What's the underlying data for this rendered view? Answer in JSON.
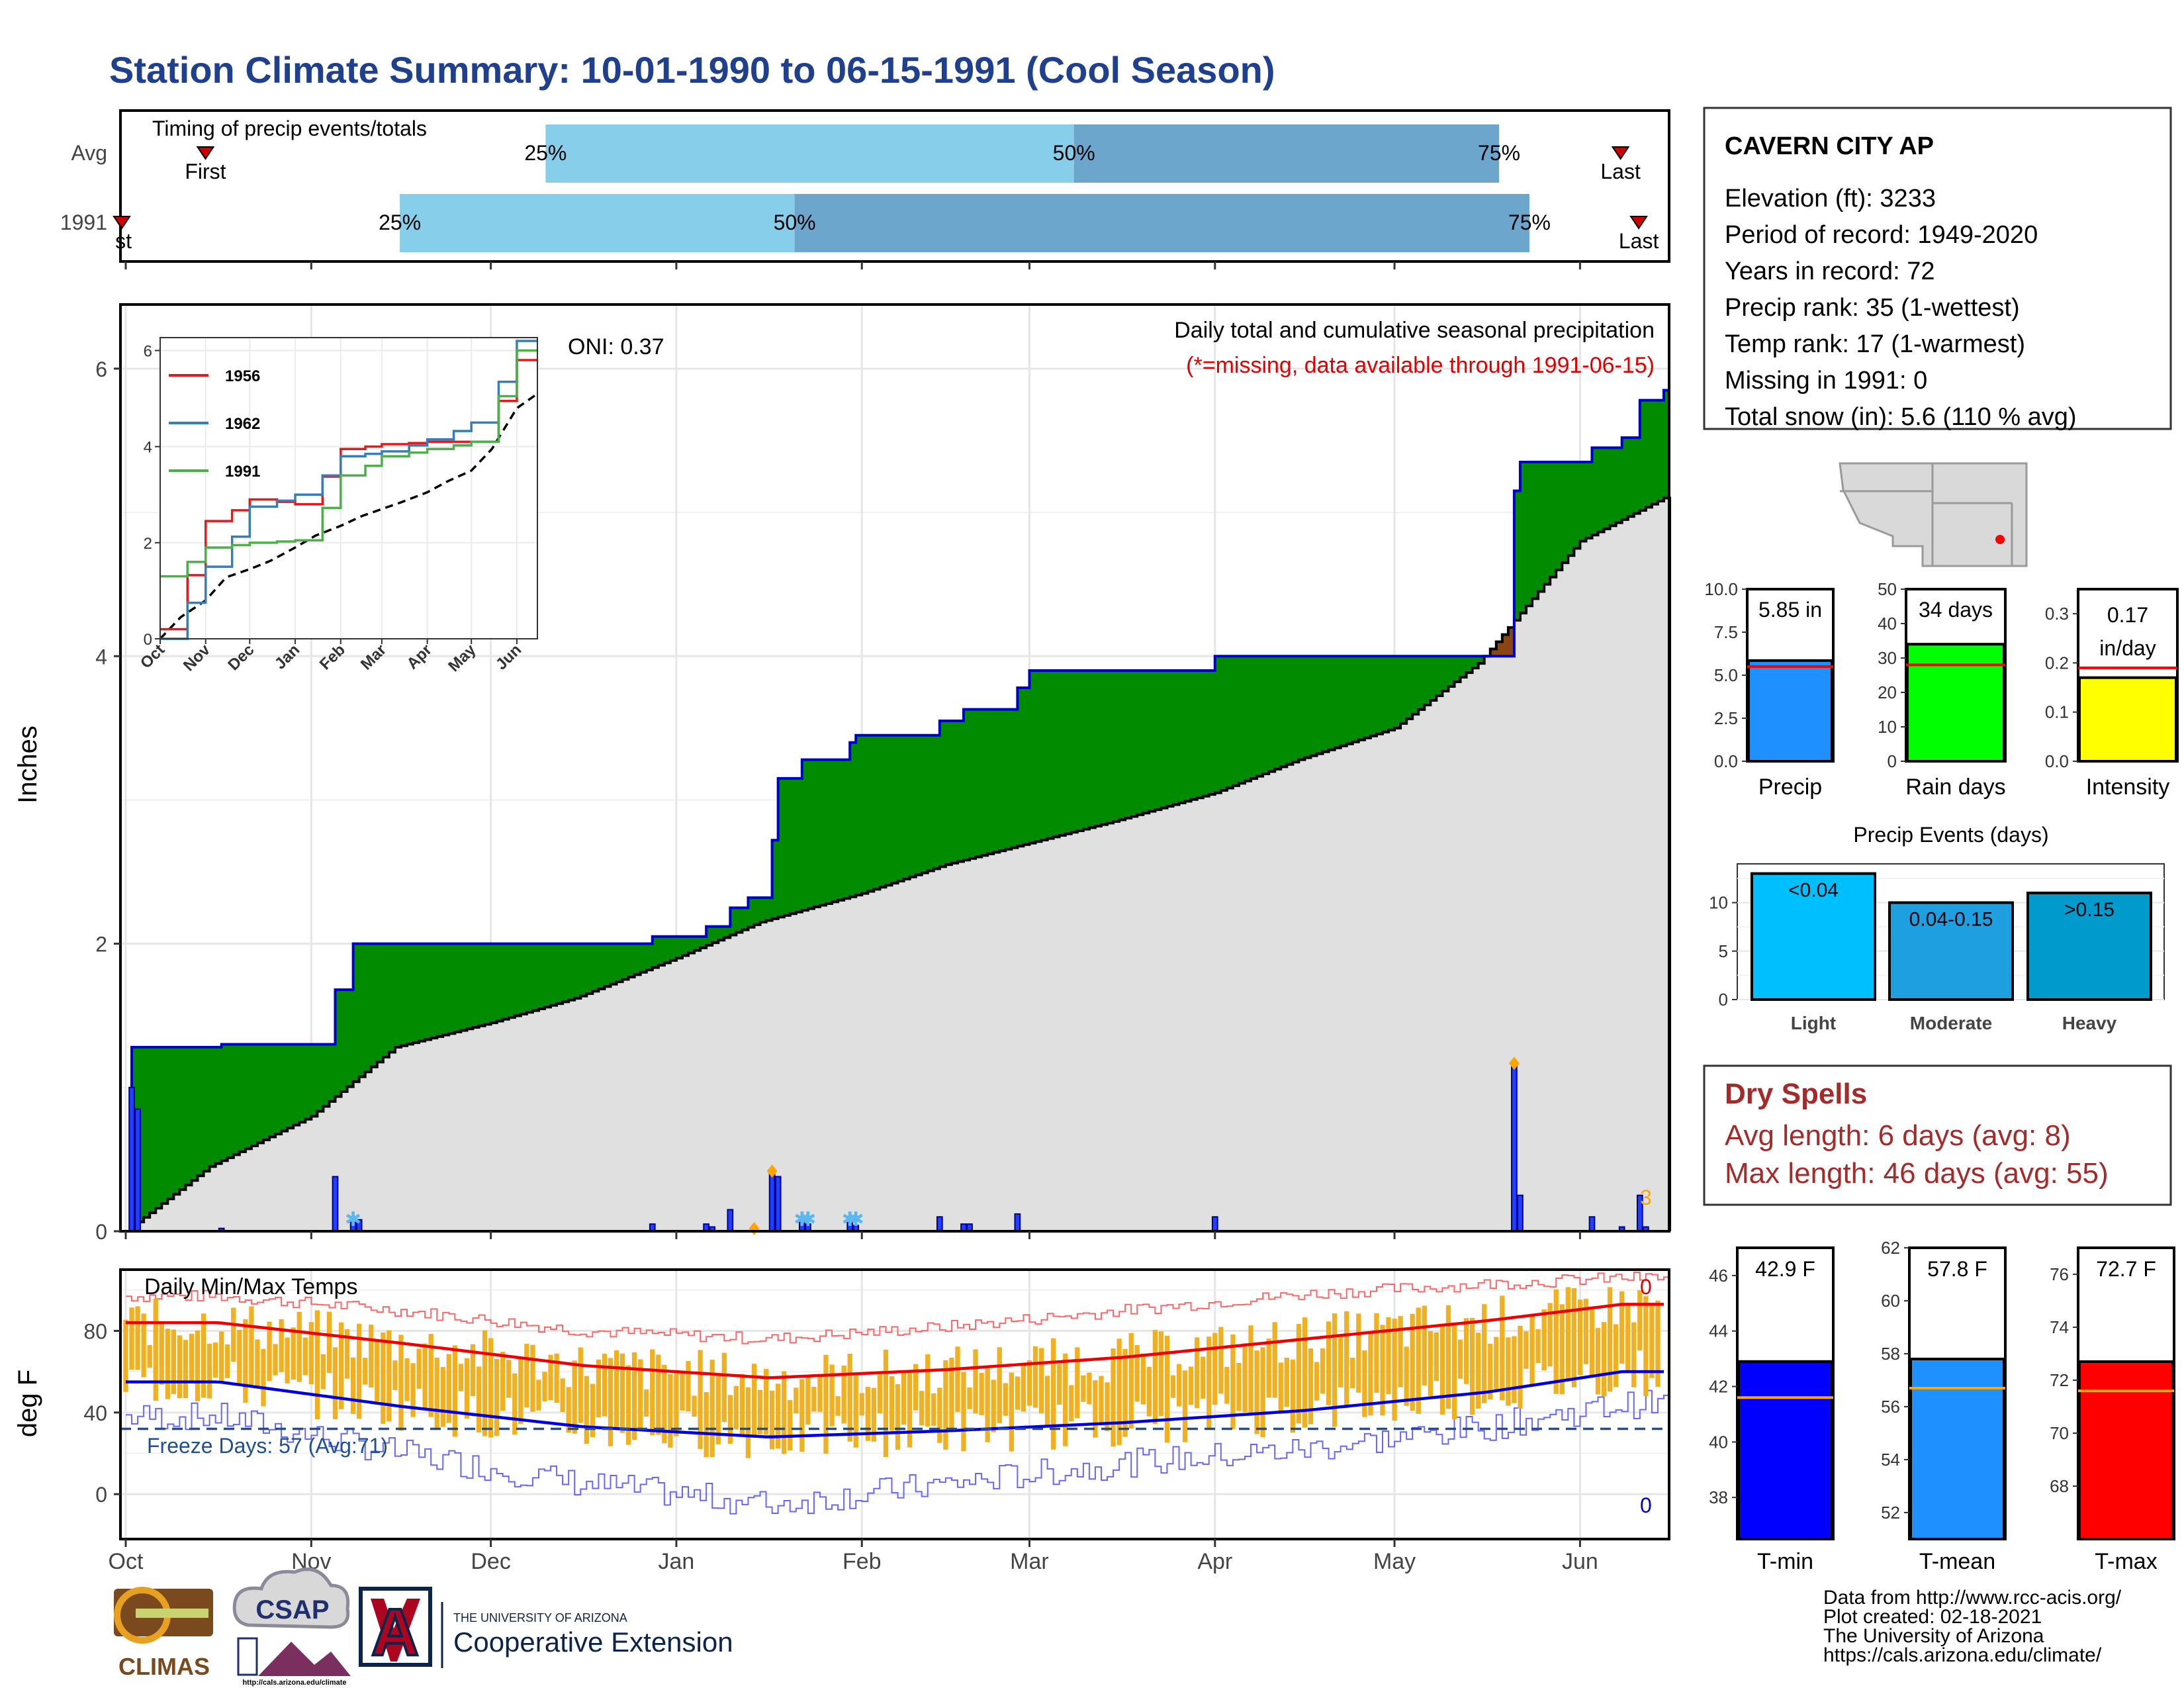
{
  "title": "Station Climate Summary: 10-01-1990 to 06-15-1991 (Cool Season)",
  "months": [
    "Oct",
    "Nov",
    "Dec",
    "Jan",
    "Feb",
    "Mar",
    "Apr",
    "May",
    "Jun"
  ],
  "timing": {
    "label": "Timing of precip events/totals",
    "rows": [
      {
        "name": "Avg",
        "first_label": "First",
        "last_label": "Last",
        "p25": "25%",
        "p50": "50%",
        "p75": "75%",
        "first_day": 14,
        "q25_day": 70,
        "q50_day": 157,
        "q75_day": 227,
        "last_day": 247
      },
      {
        "name": "1991",
        "first_label": "First",
        "last_label": "Last",
        "p25": "25%",
        "p50": "50%",
        "p75": "75%",
        "first_day": 0,
        "q25_day": 46,
        "q50_day": 111,
        "q75_day": 232,
        "last_day": 250
      }
    ],
    "colors": {
      "light": "#87CEEB",
      "dark": "#6CA6CD",
      "marker": "#CC0000"
    }
  },
  "precip_panel": {
    "ylabel": "Inches",
    "oni": "ONI: 0.37",
    "subtitle": "Daily total and cumulative seasonal precipitation",
    "note": "(*=missing, data available through 1991-06-15)",
    "yticks": [
      "0",
      "2",
      "4",
      "6"
    ],
    "corner_label": "3"
  },
  "inset": {
    "series": [
      {
        "name": "1956",
        "color": "#E41A1C"
      },
      {
        "name": "1962",
        "color": "#377EB8"
      },
      {
        "name": "1991",
        "color": "#4DAF4A"
      }
    ],
    "yticks": [
      "0",
      "2",
      "4",
      "6"
    ],
    "xticks": [
      "Oct",
      "Nov",
      "Dec",
      "Jan",
      "Feb",
      "Mar",
      "Apr",
      "May",
      "Jun"
    ]
  },
  "temp_panel": {
    "ylabel": "deg F",
    "label": "Daily Min/Max Temps",
    "freeze": "Freeze Days: 57 (Avg:71)",
    "count_max": "0",
    "count_min": "0",
    "yticks": [
      "0",
      "40",
      "80"
    ]
  },
  "station": {
    "name": "CAVERN CITY AP",
    "lines": [
      "Elevation (ft): 3233",
      "Period of record: 1949-2020",
      "Years in record: 72",
      "Precip rank: 35 (1-wettest)",
      "Temp rank: 17 (1-warmest)",
      "Missing in 1991: 0",
      "Total snow (in): 5.6 (110 % avg)"
    ]
  },
  "summary_bars": [
    {
      "label": "Precip",
      "value_text": "5.85 in",
      "value": 5.85,
      "avg": 5.5,
      "max": 10,
      "ticks": [
        "0.0",
        "2.5",
        "5.0",
        "7.5",
        "10.0"
      ],
      "color": "#1E90FF"
    },
    {
      "label": "Rain days",
      "value_text": "34 days",
      "value": 34,
      "avg": 28,
      "max": 50,
      "ticks": [
        "0",
        "10",
        "20",
        "30",
        "40",
        "50"
      ],
      "color": "#00FF00"
    },
    {
      "label": "Intensity",
      "value_text": "0.17 in/day",
      "value": 0.17,
      "avg": 0.19,
      "max": 0.35,
      "ticks": [
        "0.0",
        "0.1",
        "0.2",
        "0.3"
      ],
      "color": "#FFFF00"
    }
  ],
  "precip_events": {
    "title": "Precip Events (days)",
    "yticks": [
      "0",
      "5",
      "10"
    ],
    "bars": [
      {
        "label": "Light",
        "bin": "<0.04",
        "value": 13,
        "color": "#00BFFF"
      },
      {
        "label": "Moderate",
        "bin": "0.04-0.15",
        "value": 10,
        "color": "#1E9FDF"
      },
      {
        "label": "Heavy",
        "bin": ">0.15",
        "value": 11,
        "color": "#009ACD"
      }
    ]
  },
  "dry_spells": {
    "title": "Dry Spells",
    "avg": "Avg length: 6 days (avg: 8)",
    "max": "Max length: 46 days (avg: 55)"
  },
  "temp_bars": [
    {
      "label": "T-min",
      "value_text": "42.9 F",
      "value": 42.9,
      "avg": 41.6,
      "min": 36.5,
      "max": 47,
      "ticks": [
        "38",
        "40",
        "42",
        "44",
        "46"
      ],
      "color": "#0000FF"
    },
    {
      "label": "T-mean",
      "value_text": "57.8 F",
      "value": 57.8,
      "avg": 56.7,
      "min": 51,
      "max": 62,
      "ticks": [
        "52",
        "54",
        "56",
        "58",
        "60",
        "62"
      ],
      "color": "#1E90FF"
    },
    {
      "label": "T-max",
      "value_text": "72.7 F",
      "value": 72.7,
      "avg": 71.6,
      "min": 66,
      "max": 77,
      "ticks": [
        "68",
        "70",
        "72",
        "74",
        "76"
      ],
      "color": "#FF0000"
    }
  ],
  "credits": [
    "Data from http://www.rcc-acis.org/",
    "Plot created: 02-18-2021",
    "The University of Arizona",
    "https://cals.arizona.edu/climate/"
  ],
  "logos": {
    "climas": "CLIMAS",
    "csap": "CSAP",
    "csap_url": "http://cals.arizona.edu/climate",
    "ua_small": "THE UNIVERSITY OF ARIZONA",
    "ua_large": "Cooperative Extension"
  },
  "chart_data": [
    {
      "type": "area",
      "title": "Daily total and cumulative seasonal precipitation",
      "ylabel": "Inches",
      "ylim": [
        0,
        6.3
      ],
      "x_unit": "date",
      "cumulative_1991": [
        [
          "1990-10-01",
          0
        ],
        [
          "1990-10-02",
          1.28
        ],
        [
          "1990-10-17",
          1.3
        ],
        [
          "1990-11-05",
          1.68
        ],
        [
          "1990-11-08",
          2.0
        ],
        [
          "1990-12-28",
          2.05
        ],
        [
          "1991-01-06",
          2.12
        ],
        [
          "1991-01-10",
          2.25
        ],
        [
          "1991-01-13",
          2.32
        ],
        [
          "1991-01-17",
          2.72
        ],
        [
          "1991-01-18",
          3.15
        ],
        [
          "1991-01-22",
          3.28
        ],
        [
          "1991-01-30",
          3.4
        ],
        [
          "1991-01-31",
          3.45
        ],
        [
          "1991-02-14",
          3.55
        ],
        [
          "1991-02-18",
          3.63
        ],
        [
          "1991-02-27",
          3.78
        ],
        [
          "1991-03-01",
          3.9
        ],
        [
          "1991-04-01",
          4.0
        ],
        [
          "1991-05-21",
          5.15
        ],
        [
          "1991-05-22",
          5.35
        ],
        [
          "1991-06-03",
          5.45
        ],
        [
          "1991-06-08",
          5.52
        ],
        [
          "1991-06-11",
          5.78
        ],
        [
          "1991-06-15",
          5.85
        ]
      ],
      "average_cumulative": [
        [
          "1990-10-01",
          0
        ],
        [
          "1990-10-15",
          0.45
        ],
        [
          "1990-11-01",
          0.8
        ],
        [
          "1990-11-15",
          1.28
        ],
        [
          "1990-12-01",
          1.45
        ],
        [
          "1990-12-15",
          1.62
        ],
        [
          "1991-01-01",
          1.9
        ],
        [
          "1991-01-15",
          2.15
        ],
        [
          "1991-02-01",
          2.35
        ],
        [
          "1991-02-15",
          2.55
        ],
        [
          "1991-03-01",
          2.7
        ],
        [
          "1991-03-15",
          2.85
        ],
        [
          "1991-04-01",
          3.05
        ],
        [
          "1991-04-15",
          3.28
        ],
        [
          "1991-05-01",
          3.5
        ],
        [
          "1991-05-15",
          3.95
        ],
        [
          "1991-06-01",
          4.8
        ],
        [
          "1991-06-15",
          5.1
        ]
      ],
      "daily_precip": [
        [
          "1990-10-02",
          1.0
        ],
        [
          "1990-10-03",
          0.85
        ],
        [
          "1990-10-17",
          0.02
        ],
        [
          "1990-11-05",
          0.38
        ],
        [
          "1990-11-08",
          0.1
        ],
        [
          "1990-11-09",
          0.08
        ],
        [
          "1990-12-28",
          0.05
        ],
        [
          "1991-01-06",
          0.05
        ],
        [
          "1991-01-07",
          0.03
        ],
        [
          "1991-01-10",
          0.15
        ],
        [
          "1991-01-17",
          0.4
        ],
        [
          "1991-01-18",
          0.38
        ],
        [
          "1991-01-22",
          0.1
        ],
        [
          "1991-01-23",
          0.05
        ],
        [
          "1991-01-30",
          0.06
        ],
        [
          "1991-01-31",
          0.04
        ],
        [
          "1991-02-14",
          0.1
        ],
        [
          "1991-02-18",
          0.05
        ],
        [
          "1991-02-19",
          0.05
        ],
        [
          "1991-02-27",
          0.12
        ],
        [
          "1991-04-01",
          0.1
        ],
        [
          "1991-05-21",
          1.15
        ],
        [
          "1991-05-22",
          0.25
        ],
        [
          "1991-06-03",
          0.1
        ],
        [
          "1991-06-08",
          0.03
        ],
        [
          "1991-06-11",
          0.25
        ],
        [
          "1991-06-12",
          0.03
        ]
      ]
    },
    {
      "type": "line",
      "title": "",
      "ylim": [
        0,
        6.2
      ],
      "x": [
        "Oct",
        "Nov",
        "Dec",
        "Jan",
        "Feb",
        "Mar",
        "Apr",
        "May",
        "Jun"
      ],
      "series": [
        {
          "name": "1956",
          "values": [
            0.2,
            2.45,
            2.9,
            2.8,
            3.95,
            4.05,
            4.1,
            4.1,
            5.8
          ]
        },
        {
          "name": "1962",
          "values": [
            0.0,
            1.5,
            2.75,
            3.0,
            3.8,
            3.9,
            4.15,
            4.5,
            6.2
          ]
        },
        {
          "name": "1991",
          "values": [
            1.3,
            1.9,
            2.0,
            2.05,
            3.4,
            3.8,
            3.95,
            4.1,
            6.0
          ]
        }
      ]
    },
    {
      "type": "bar",
      "title": "Daily Min/Max Temps",
      "ylabel": "deg F",
      "ylim": [
        -22,
        110
      ],
      "x": [
        "Oct",
        "Nov",
        "Dec",
        "Jan",
        "Feb",
        "Mar",
        "Apr",
        "May",
        "Jun"
      ],
      "series": [
        {
          "name": "avg_max",
          "values": [
            84,
            74,
            63,
            57,
            61,
            67,
            76,
            85,
            93
          ]
        },
        {
          "name": "avg_min",
          "values": [
            55,
            43,
            33,
            28,
            31,
            35,
            41,
            50,
            60
          ]
        },
        {
          "name": "record_max",
          "values": [
            97,
            90,
            80,
            76,
            82,
            90,
            98,
            103,
            106
          ]
        },
        {
          "name": "record_min",
          "values": [
            38,
            20,
            5,
            -5,
            5,
            15,
            22,
            33,
            44
          ]
        }
      ],
      "freeze_line": 32
    },
    {
      "type": "bar",
      "title": "",
      "categories": [
        "Precip"
      ],
      "values": [
        5.85
      ],
      "ylim": [
        0,
        10
      ]
    },
    {
      "type": "bar",
      "title": "",
      "categories": [
        "Rain days"
      ],
      "values": [
        34
      ],
      "ylim": [
        0,
        50
      ]
    },
    {
      "type": "bar",
      "title": "",
      "categories": [
        "Intensity"
      ],
      "values": [
        0.17
      ],
      "ylim": [
        0,
        0.35
      ]
    },
    {
      "type": "bar",
      "title": "Precip Events (days)",
      "categories": [
        "Light",
        "Moderate",
        "Heavy"
      ],
      "values": [
        13,
        10,
        11
      ],
      "ylim": [
        0,
        14
      ]
    },
    {
      "type": "bar",
      "title": "",
      "categories": [
        "T-min",
        "T-mean",
        "T-max"
      ],
      "values": [
        42.9,
        57.8,
        72.7
      ]
    }
  ]
}
